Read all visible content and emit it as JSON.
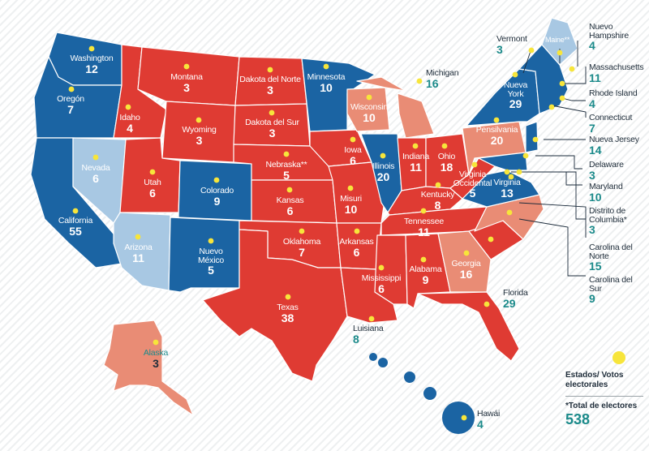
{
  "colors": {
    "red": "#df3b33",
    "blue": "#1b64a3",
    "salmon": "#e98c75",
    "light_blue": "#a8c8e3",
    "dot": "#f7e53b",
    "teal_text": "#1b8a8a",
    "dark_text": "#1f2d3a"
  },
  "states": [
    {
      "name": "Washington",
      "votes": "12"
    },
    {
      "name": "Oregón",
      "votes": "7"
    },
    {
      "name": "California",
      "votes": "55"
    },
    {
      "name": "Nevada",
      "votes": "6"
    },
    {
      "name": "Idaho",
      "votes": "4"
    },
    {
      "name": "Montana",
      "votes": "3"
    },
    {
      "name": "Wyoming",
      "votes": "3"
    },
    {
      "name": "Utah",
      "votes": "6"
    },
    {
      "name": "Arizona",
      "votes": "11"
    },
    {
      "name": "Colorado",
      "votes": "9"
    },
    {
      "name": "Nuevo México",
      "votes": "5"
    },
    {
      "name": "Dakota del Norte",
      "votes": "3"
    },
    {
      "name": "Dakota del Sur",
      "votes": "3"
    },
    {
      "name": "Nebraska**",
      "votes": "5"
    },
    {
      "name": "Kansas",
      "votes": "6"
    },
    {
      "name": "Oklahoma",
      "votes": "7"
    },
    {
      "name": "Texas",
      "votes": "38"
    },
    {
      "name": "Minnesota",
      "votes": "10"
    },
    {
      "name": "Iowa",
      "votes": "6"
    },
    {
      "name": "Misuri",
      "votes": "10"
    },
    {
      "name": "Arkansas",
      "votes": "6"
    },
    {
      "name": "Wisconsin",
      "votes": "10"
    },
    {
      "name": "Illinois",
      "votes": "20"
    },
    {
      "name": "Indiana",
      "votes": "11"
    },
    {
      "name": "Ohio",
      "votes": "18"
    },
    {
      "name": "Kentucky",
      "votes": "8"
    },
    {
      "name": "Tennessee",
      "votes": "11"
    },
    {
      "name": "Mississippi",
      "votes": "6"
    },
    {
      "name": "Alabama",
      "votes": "9"
    },
    {
      "name": "Georgia",
      "votes": "16"
    },
    {
      "name": "Pensilvania",
      "votes": "20"
    },
    {
      "name": "Nueva York",
      "votes": "29"
    },
    {
      "name": "Virginia Occidental",
      "votes": "5"
    },
    {
      "name": "Virginia",
      "votes": "13"
    },
    {
      "name": "Alaska",
      "votes": "3"
    },
    {
      "name": "Hawái",
      "votes": "4"
    },
    {
      "name": "Michigan",
      "votes": "16"
    },
    {
      "name": "Luisiana",
      "votes": "8"
    },
    {
      "name": "Florida",
      "votes": "29"
    },
    {
      "name": "Vermont",
      "votes": "3"
    },
    {
      "name": "Maine**",
      "votes": "4"
    },
    {
      "name": "Nuevo Hampshire",
      "votes": "4"
    },
    {
      "name": "Massachusetts",
      "votes": "11"
    },
    {
      "name": "Rhode Island",
      "votes": "4"
    },
    {
      "name": "Connecticut",
      "votes": "7"
    },
    {
      "name": "Nueva Jersey",
      "votes": "14"
    },
    {
      "name": "Delaware",
      "votes": "3"
    },
    {
      "name": "Maryland",
      "votes": "10"
    },
    {
      "name": "Distrito de Columbia*",
      "votes": "3"
    },
    {
      "name": "Carolina del Norte",
      "votes": "15"
    },
    {
      "name": "Carolina del Sur",
      "votes": "9"
    }
  ],
  "legend": {
    "label": "Estados/ Votos electorales",
    "total_label": "*Total de electores",
    "total_value": "538"
  }
}
